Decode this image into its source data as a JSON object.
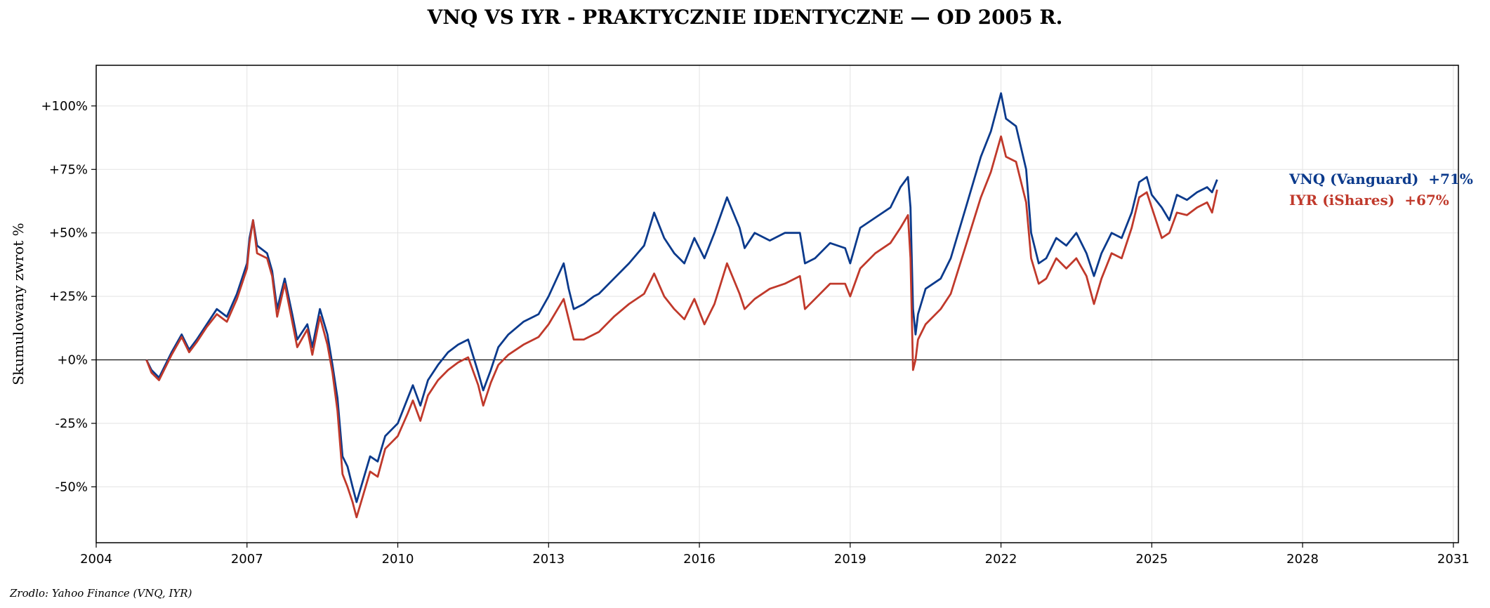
{
  "chart_data": {
    "type": "line",
    "title": "VNQ VS IYR - PRAKTYCZNIE IDENTYCZNE — OD 2005 R.",
    "xlabel": "",
    "ylabel": "Skumulowany zwrot %",
    "xlim": [
      2004,
      2031.1
    ],
    "ylim": [
      -72,
      116
    ],
    "x_ticks": [
      2004,
      2007,
      2010,
      2013,
      2016,
      2019,
      2022,
      2025,
      2028,
      2031
    ],
    "x_tick_labels": [
      "2004",
      "2007",
      "2010",
      "2013",
      "2016",
      "2019",
      "2022",
      "2025",
      "2028",
      "2031"
    ],
    "y_ticks": [
      -50,
      -25,
      0,
      25,
      50,
      75,
      100
    ],
    "y_tick_labels": [
      "-50%",
      "-25%",
      "+0%",
      "+25%",
      "+50%",
      "+75%",
      "+100%"
    ],
    "grid": true,
    "zero_line": true,
    "legend_placement": "right",
    "source": "Zrodlo: Yahoo Finance (VNQ, IYR)",
    "series": [
      {
        "name": "VNQ (Vanguard)",
        "end_label": "+71%",
        "color": "#0b3a8c",
        "points": [
          [
            2005.0,
            0
          ],
          [
            2005.1,
            -4
          ],
          [
            2005.25,
            -7
          ],
          [
            2005.5,
            3
          ],
          [
            2005.7,
            10
          ],
          [
            2005.85,
            4
          ],
          [
            2006.0,
            8
          ],
          [
            2006.2,
            14
          ],
          [
            2006.4,
            20
          ],
          [
            2006.6,
            17
          ],
          [
            2006.8,
            26
          ],
          [
            2007.0,
            38
          ],
          [
            2007.05,
            48
          ],
          [
            2007.12,
            55
          ],
          [
            2007.2,
            45
          ],
          [
            2007.4,
            42
          ],
          [
            2007.5,
            35
          ],
          [
            2007.6,
            20
          ],
          [
            2007.75,
            32
          ],
          [
            2007.9,
            18
          ],
          [
            2008.0,
            8
          ],
          [
            2008.2,
            14
          ],
          [
            2008.3,
            5
          ],
          [
            2008.45,
            20
          ],
          [
            2008.6,
            10
          ],
          [
            2008.7,
            -2
          ],
          [
            2008.8,
            -15
          ],
          [
            2008.9,
            -38
          ],
          [
            2009.0,
            -42
          ],
          [
            2009.1,
            -50
          ],
          [
            2009.18,
            -56
          ],
          [
            2009.3,
            -48
          ],
          [
            2009.45,
            -38
          ],
          [
            2009.6,
            -40
          ],
          [
            2009.75,
            -30
          ],
          [
            2009.9,
            -27
          ],
          [
            2010.0,
            -25
          ],
          [
            2010.2,
            -15
          ],
          [
            2010.3,
            -10
          ],
          [
            2010.45,
            -18
          ],
          [
            2010.6,
            -8
          ],
          [
            2010.8,
            -2
          ],
          [
            2011.0,
            3
          ],
          [
            2011.2,
            6
          ],
          [
            2011.4,
            8
          ],
          [
            2011.6,
            -5
          ],
          [
            2011.7,
            -12
          ],
          [
            2011.85,
            -4
          ],
          [
            2012.0,
            5
          ],
          [
            2012.2,
            10
          ],
          [
            2012.5,
            15
          ],
          [
            2012.8,
            18
          ],
          [
            2013.0,
            25
          ],
          [
            2013.3,
            38
          ],
          [
            2013.4,
            28
          ],
          [
            2013.5,
            20
          ],
          [
            2013.7,
            22
          ],
          [
            2013.9,
            25
          ],
          [
            2014.0,
            26
          ],
          [
            2014.3,
            32
          ],
          [
            2014.6,
            38
          ],
          [
            2014.9,
            45
          ],
          [
            2015.1,
            58
          ],
          [
            2015.3,
            48
          ],
          [
            2015.5,
            42
          ],
          [
            2015.7,
            38
          ],
          [
            2015.9,
            48
          ],
          [
            2016.1,
            40
          ],
          [
            2016.3,
            50
          ],
          [
            2016.55,
            64
          ],
          [
            2016.8,
            52
          ],
          [
            2016.9,
            44
          ],
          [
            2017.1,
            50
          ],
          [
            2017.4,
            47
          ],
          [
            2017.7,
            50
          ],
          [
            2018.0,
            50
          ],
          [
            2018.1,
            38
          ],
          [
            2018.3,
            40
          ],
          [
            2018.6,
            46
          ],
          [
            2018.9,
            44
          ],
          [
            2019.0,
            38
          ],
          [
            2019.2,
            52
          ],
          [
            2019.5,
            56
          ],
          [
            2019.8,
            60
          ],
          [
            2020.0,
            68
          ],
          [
            2020.15,
            72
          ],
          [
            2020.2,
            60
          ],
          [
            2020.25,
            20
          ],
          [
            2020.3,
            10
          ],
          [
            2020.35,
            18
          ],
          [
            2020.5,
            28
          ],
          [
            2020.8,
            32
          ],
          [
            2021.0,
            40
          ],
          [
            2021.3,
            60
          ],
          [
            2021.6,
            80
          ],
          [
            2021.8,
            90
          ],
          [
            2022.0,
            105
          ],
          [
            2022.1,
            95
          ],
          [
            2022.3,
            92
          ],
          [
            2022.5,
            75
          ],
          [
            2022.6,
            50
          ],
          [
            2022.75,
            38
          ],
          [
            2022.9,
            40
          ],
          [
            2023.1,
            48
          ],
          [
            2023.3,
            45
          ],
          [
            2023.5,
            50
          ],
          [
            2023.7,
            42
          ],
          [
            2023.85,
            33
          ],
          [
            2024.0,
            42
          ],
          [
            2024.2,
            50
          ],
          [
            2024.4,
            48
          ],
          [
            2024.6,
            58
          ],
          [
            2024.75,
            70
          ],
          [
            2024.9,
            72
          ],
          [
            2025.0,
            65
          ],
          [
            2025.2,
            60
          ],
          [
            2025.35,
            55
          ],
          [
            2025.5,
            65
          ],
          [
            2025.7,
            63
          ],
          [
            2025.9,
            66
          ],
          [
            2026.1,
            68
          ],
          [
            2026.2,
            66
          ],
          [
            2026.3,
            71
          ]
        ]
      },
      {
        "name": "IYR (iShares)",
        "end_label": "+67%",
        "color": "#c0392b",
        "points": [
          [
            2005.0,
            0
          ],
          [
            2005.1,
            -5
          ],
          [
            2005.25,
            -8
          ],
          [
            2005.5,
            2
          ],
          [
            2005.7,
            9
          ],
          [
            2005.85,
            3
          ],
          [
            2006.0,
            7
          ],
          [
            2006.2,
            13
          ],
          [
            2006.4,
            18
          ],
          [
            2006.6,
            15
          ],
          [
            2006.8,
            24
          ],
          [
            2007.0,
            36
          ],
          [
            2007.05,
            46
          ],
          [
            2007.12,
            55
          ],
          [
            2007.2,
            42
          ],
          [
            2007.4,
            40
          ],
          [
            2007.5,
            33
          ],
          [
            2007.6,
            17
          ],
          [
            2007.75,
            30
          ],
          [
            2007.9,
            15
          ],
          [
            2008.0,
            5
          ],
          [
            2008.2,
            12
          ],
          [
            2008.3,
            2
          ],
          [
            2008.45,
            17
          ],
          [
            2008.6,
            6
          ],
          [
            2008.7,
            -5
          ],
          [
            2008.8,
            -20
          ],
          [
            2008.9,
            -45
          ],
          [
            2009.0,
            -50
          ],
          [
            2009.1,
            -56
          ],
          [
            2009.18,
            -62
          ],
          [
            2009.3,
            -54
          ],
          [
            2009.45,
            -44
          ],
          [
            2009.6,
            -46
          ],
          [
            2009.75,
            -35
          ],
          [
            2009.9,
            -32
          ],
          [
            2010.0,
            -30
          ],
          [
            2010.2,
            -21
          ],
          [
            2010.3,
            -16
          ],
          [
            2010.45,
            -24
          ],
          [
            2010.6,
            -14
          ],
          [
            2010.8,
            -8
          ],
          [
            2011.0,
            -4
          ],
          [
            2011.2,
            -1
          ],
          [
            2011.4,
            1
          ],
          [
            2011.6,
            -10
          ],
          [
            2011.7,
            -18
          ],
          [
            2011.85,
            -9
          ],
          [
            2012.0,
            -2
          ],
          [
            2012.2,
            2
          ],
          [
            2012.5,
            6
          ],
          [
            2012.8,
            9
          ],
          [
            2013.0,
            14
          ],
          [
            2013.3,
            24
          ],
          [
            2013.4,
            16
          ],
          [
            2013.5,
            8
          ],
          [
            2013.7,
            8
          ],
          [
            2013.9,
            10
          ],
          [
            2014.0,
            11
          ],
          [
            2014.3,
            17
          ],
          [
            2014.6,
            22
          ],
          [
            2014.9,
            26
          ],
          [
            2015.1,
            34
          ],
          [
            2015.3,
            25
          ],
          [
            2015.5,
            20
          ],
          [
            2015.7,
            16
          ],
          [
            2015.9,
            24
          ],
          [
            2016.1,
            14
          ],
          [
            2016.3,
            22
          ],
          [
            2016.55,
            38
          ],
          [
            2016.8,
            26
          ],
          [
            2016.9,
            20
          ],
          [
            2017.1,
            24
          ],
          [
            2017.4,
            28
          ],
          [
            2017.7,
            30
          ],
          [
            2018.0,
            33
          ],
          [
            2018.1,
            20
          ],
          [
            2018.3,
            24
          ],
          [
            2018.6,
            30
          ],
          [
            2018.9,
            30
          ],
          [
            2019.0,
            25
          ],
          [
            2019.2,
            36
          ],
          [
            2019.5,
            42
          ],
          [
            2019.8,
            46
          ],
          [
            2020.0,
            52
          ],
          [
            2020.15,
            57
          ],
          [
            2020.2,
            40
          ],
          [
            2020.25,
            -4
          ],
          [
            2020.3,
            0
          ],
          [
            2020.35,
            8
          ],
          [
            2020.5,
            14
          ],
          [
            2020.8,
            20
          ],
          [
            2021.0,
            26
          ],
          [
            2021.3,
            45
          ],
          [
            2021.6,
            64
          ],
          [
            2021.8,
            74
          ],
          [
            2022.0,
            88
          ],
          [
            2022.1,
            80
          ],
          [
            2022.3,
            78
          ],
          [
            2022.5,
            62
          ],
          [
            2022.6,
            40
          ],
          [
            2022.75,
            30
          ],
          [
            2022.9,
            32
          ],
          [
            2023.1,
            40
          ],
          [
            2023.3,
            36
          ],
          [
            2023.5,
            40
          ],
          [
            2023.7,
            33
          ],
          [
            2023.85,
            22
          ],
          [
            2024.0,
            32
          ],
          [
            2024.2,
            42
          ],
          [
            2024.4,
            40
          ],
          [
            2024.6,
            52
          ],
          [
            2024.75,
            64
          ],
          [
            2024.9,
            66
          ],
          [
            2025.0,
            60
          ],
          [
            2025.2,
            48
          ],
          [
            2025.35,
            50
          ],
          [
            2025.5,
            58
          ],
          [
            2025.7,
            57
          ],
          [
            2025.9,
            60
          ],
          [
            2026.1,
            62
          ],
          [
            2026.2,
            58
          ],
          [
            2026.3,
            67
          ]
        ]
      }
    ]
  }
}
